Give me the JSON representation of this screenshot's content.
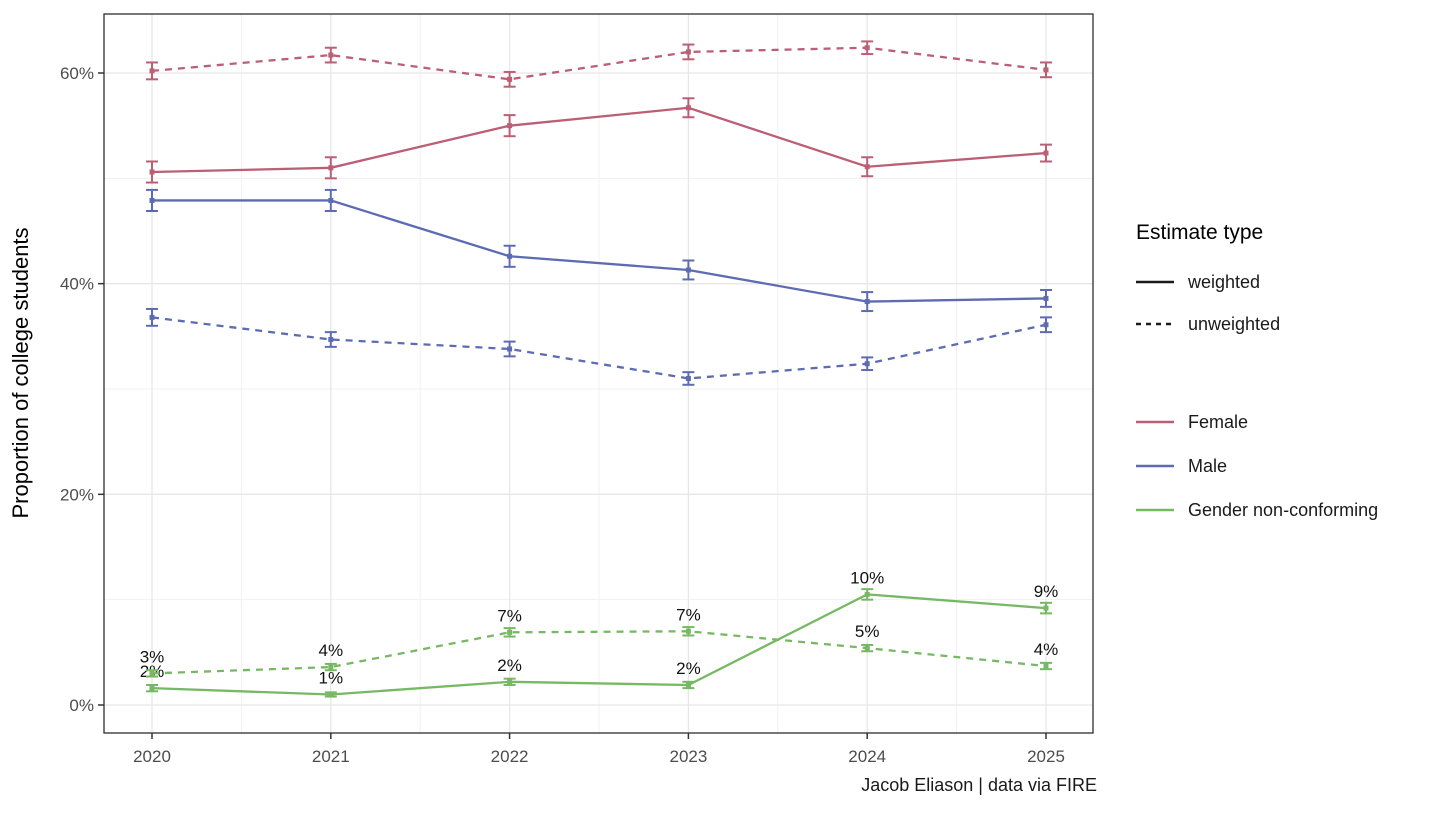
{
  "figure": {
    "ylabel": "Proportion of college students",
    "caption": "Jacob Eliason | data via FIRE",
    "background": "#ffffff",
    "panel_border_color": "#2e2e2e",
    "grid_major_color": "#e7e7e7",
    "grid_minor_color": "#f1f1f1",
    "tick_color": "#333333"
  },
  "legend": {
    "title": "Estimate type",
    "estimate_types": [
      {
        "label": "weighted",
        "dash": "solid",
        "color": "#1a1a1a"
      },
      {
        "label": "unweighted",
        "dash": "dashed",
        "color": "#1a1a1a"
      }
    ],
    "groups": [
      {
        "label": "Female",
        "color": "#ba5f76"
      },
      {
        "label": "Male",
        "color": "#5d6cb2"
      },
      {
        "label": "Gender non-conforming",
        "color": "#77b864"
      }
    ]
  },
  "chart_data": {
    "type": "line",
    "title": "",
    "xlabel": "",
    "ylabel": "Proportion of college students",
    "caption": "Jacob Eliason | data via FIRE",
    "x": [
      2020,
      2021,
      2022,
      2023,
      2024,
      2025
    ],
    "x_tick_labels": [
      "2020",
      "2021",
      "2022",
      "2023",
      "2024",
      "2025"
    ],
    "ylim": [
      0,
      65
    ],
    "yticks": [
      0,
      20,
      40,
      60
    ],
    "ytick_labels": [
      "0%",
      "20%",
      "40%",
      "60%"
    ],
    "yticks_minor": [
      10,
      30,
      50
    ],
    "grid": {
      "major": true,
      "minor": true
    },
    "legend_position": "right",
    "series": [
      {
        "name": "Female weighted",
        "group": "Female",
        "estimate": "weighted",
        "color": "#ba5f76",
        "dash": "solid",
        "values": [
          50.6,
          51.0,
          55.0,
          56.7,
          51.1,
          52.4
        ],
        "error": [
          1.0,
          1.0,
          1.0,
          0.9,
          0.9,
          0.8
        ]
      },
      {
        "name": "Female unweighted",
        "group": "Female",
        "estimate": "unweighted",
        "color": "#ba5f76",
        "dash": "dashed",
        "values": [
          60.2,
          61.7,
          59.4,
          62.0,
          62.4,
          60.3
        ],
        "error": [
          0.8,
          0.7,
          0.7,
          0.7,
          0.6,
          0.7
        ]
      },
      {
        "name": "Male weighted",
        "group": "Male",
        "estimate": "weighted",
        "color": "#5d6cb2",
        "dash": "solid",
        "values": [
          47.9,
          47.9,
          42.6,
          41.3,
          38.3,
          38.6
        ],
        "error": [
          1.0,
          1.0,
          1.0,
          0.9,
          0.9,
          0.8
        ]
      },
      {
        "name": "Male unweighted",
        "group": "Male",
        "estimate": "unweighted",
        "color": "#5d6cb2",
        "dash": "dashed",
        "values": [
          36.8,
          34.7,
          33.8,
          31.0,
          32.4,
          36.1
        ],
        "error": [
          0.8,
          0.7,
          0.7,
          0.6,
          0.6,
          0.7
        ]
      },
      {
        "name": "Gender non-conforming weighted",
        "group": "Gender non-conforming",
        "estimate": "weighted",
        "color": "#77b864",
        "dash": "solid",
        "values": [
          1.6,
          1.0,
          2.2,
          1.9,
          10.5,
          9.2
        ],
        "error": [
          0.3,
          0.2,
          0.3,
          0.3,
          0.5,
          0.5
        ],
        "labels": [
          "2%",
          "1%",
          "2%",
          "2%",
          "10%",
          "9%"
        ]
      },
      {
        "name": "Gender non-conforming unweighted",
        "group": "Gender non-conforming",
        "estimate": "unweighted",
        "color": "#77b864",
        "dash": "dashed",
        "values": [
          3.0,
          3.6,
          6.9,
          7.0,
          5.4,
          3.7
        ],
        "error": [
          0.3,
          0.3,
          0.4,
          0.4,
          0.3,
          0.3
        ],
        "labels": [
          "3%",
          "4%",
          "7%",
          "7%",
          "5%",
          "4%"
        ]
      }
    ]
  }
}
